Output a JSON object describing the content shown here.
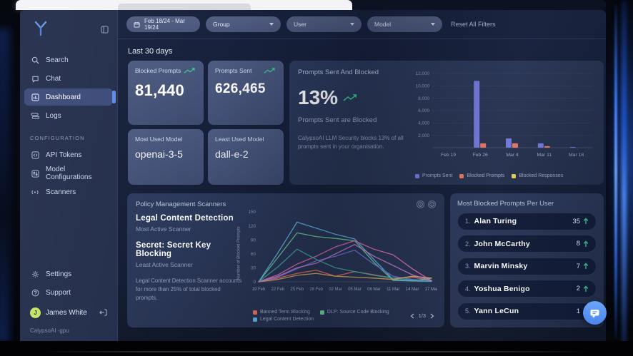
{
  "sidebar": {
    "nav": [
      {
        "label": "Search"
      },
      {
        "label": "Chat"
      },
      {
        "label": "Dashboard",
        "active": true
      },
      {
        "label": "Logs"
      }
    ],
    "config_label": "CONFIGURATION",
    "config_nav": [
      {
        "label": "API Tokens"
      },
      {
        "label": "Model Configurations"
      },
      {
        "label": "Scanners"
      }
    ],
    "footer_nav": [
      {
        "label": "Settings"
      },
      {
        "label": "Support"
      }
    ],
    "user": {
      "initial": "J",
      "name": "James White"
    },
    "org": "CalypsoAI -gpu"
  },
  "filters": {
    "date_range": "Feb 18/24 - Mar 19/24",
    "dropdowns": [
      {
        "label": "Group"
      },
      {
        "label": "User"
      },
      {
        "label": "Model"
      }
    ],
    "reset_label": "Reset All Filters"
  },
  "overview": {
    "heading": "Last 30 days",
    "stats": [
      {
        "label": "Blocked Prompts",
        "value": "81,440",
        "trend": "up"
      },
      {
        "label": "Prompts Sent",
        "value": "626,465",
        "trend": "up"
      }
    ],
    "models": [
      {
        "label": "Most Used Model",
        "value": "openai-3-5"
      },
      {
        "label": "Least Used Model",
        "value": "dall-e-2"
      }
    ]
  },
  "prompts_panel": {
    "title": "Prompts Sent And Blocked",
    "percent": "13%",
    "subtitle": "Prompts Sent are Blocked",
    "description": "CalypsoAI LLM Security blocks 13% of all prompts sent in your organisation."
  },
  "scanners_panel": {
    "title": "Policy Management Scanners",
    "most_active": {
      "name": "Legal Content Detection",
      "label": "Most Active Scanner"
    },
    "least_active": {
      "name": "Secret: Secret Key Blocking",
      "label": "Least Active Scanner"
    },
    "description": "Legal Content Detection Scanner accounts for more than 25% of total blocked prompts.",
    "pagination": "1/3"
  },
  "users_panel": {
    "title": "Most Blocked Prompts Per User",
    "rows": [
      {
        "rank": "1.",
        "name": "Alan Turing",
        "count": "35"
      },
      {
        "rank": "2.",
        "name": "John McCarthy",
        "count": "8"
      },
      {
        "rank": "3.",
        "name": "Marvin Minsky",
        "count": "7"
      },
      {
        "rank": "4.",
        "name": "Yoshua Benigo",
        "count": "2"
      },
      {
        "rank": "5.",
        "name": "Yann LeCun",
        "count": "1"
      }
    ]
  },
  "colors": {
    "accent_blue": "#5b8de8",
    "green": "#35c98a",
    "avatar": "#c9e265",
    "fab_blue": "#5b9cf5"
  },
  "chart_data": [
    {
      "type": "bar",
      "title": "Prompts Sent And Blocked",
      "categories": [
        "Feb 19",
        "Feb 26",
        "Mar 4",
        "Mar 11",
        "Mar 18"
      ],
      "series": [
        {
          "name": "Prompts Sent",
          "color": "#7377d9",
          "values": [
            30,
            10800,
            1500,
            700,
            120
          ]
        },
        {
          "name": "Blocked Prompts",
          "color": "#e8735f",
          "values": [
            10,
            700,
            700,
            250,
            30
          ]
        },
        {
          "name": "Blocked Responses",
          "color": "#e3cf5a",
          "values": [
            0,
            0,
            0,
            0,
            0
          ]
        }
      ],
      "ylim": [
        0,
        12000
      ],
      "yticks": [
        2000,
        4000,
        6000,
        8000,
        10000,
        12000
      ],
      "legend_position": "bottom"
    },
    {
      "type": "line",
      "ylabel": "Number of Blocked Prompts",
      "x": [
        "19 Feb",
        "22 Feb",
        "25 Feb",
        "28 Feb",
        "02 Mar",
        "05 Mar",
        "08 Mar",
        "11 Mar",
        "14 Mar",
        "17 Mar"
      ],
      "ylim": [
        0,
        150
      ],
      "yticks": [
        0,
        30,
        60,
        90,
        120,
        150
      ],
      "legend": [
        "Banned Term Blocking",
        "DLP: Source Code Blocking",
        "Legal Content Detection"
      ],
      "legend_page": "1/3",
      "series": [
        {
          "name": "Banned Term Blocking",
          "color": "#eb6f5c",
          "values": [
            0,
            8,
            18,
            25,
            12,
            22,
            15,
            8,
            10,
            3
          ]
        },
        {
          "name": "DLP: Source Code Blocking",
          "color": "#6fcf97",
          "values": [
            0,
            52,
            105,
            97,
            93,
            88,
            42,
            3,
            2,
            8
          ]
        },
        {
          "name": "Legal Content Detection",
          "color": "#5fb8e8",
          "values": [
            0,
            62,
            128,
            115,
            102,
            92,
            48,
            5,
            2,
            1
          ]
        },
        {
          "name": "unlabeled-pink",
          "color": "#e06fae",
          "values": [
            0,
            15,
            38,
            55,
            75,
            88,
            70,
            58,
            28,
            2
          ]
        },
        {
          "name": "unlabeled-purple",
          "color": "#6b74d8",
          "values": [
            0,
            10,
            28,
            45,
            55,
            68,
            38,
            12,
            5,
            2
          ]
        },
        {
          "name": "unlabeled-teal",
          "color": "#3fa89f",
          "values": [
            0,
            32,
            70,
            48,
            30,
            22,
            14,
            8,
            4,
            2
          ]
        },
        {
          "name": "unlabeled-orange",
          "color": "#d8a85a",
          "values": [
            0,
            5,
            14,
            18,
            12,
            10,
            8,
            5,
            12,
            8
          ]
        },
        {
          "name": "unlabeled-magenta",
          "color": "#c77dd8",
          "values": [
            0,
            12,
            30,
            40,
            60,
            80,
            55,
            35,
            15,
            3
          ]
        }
      ]
    }
  ]
}
